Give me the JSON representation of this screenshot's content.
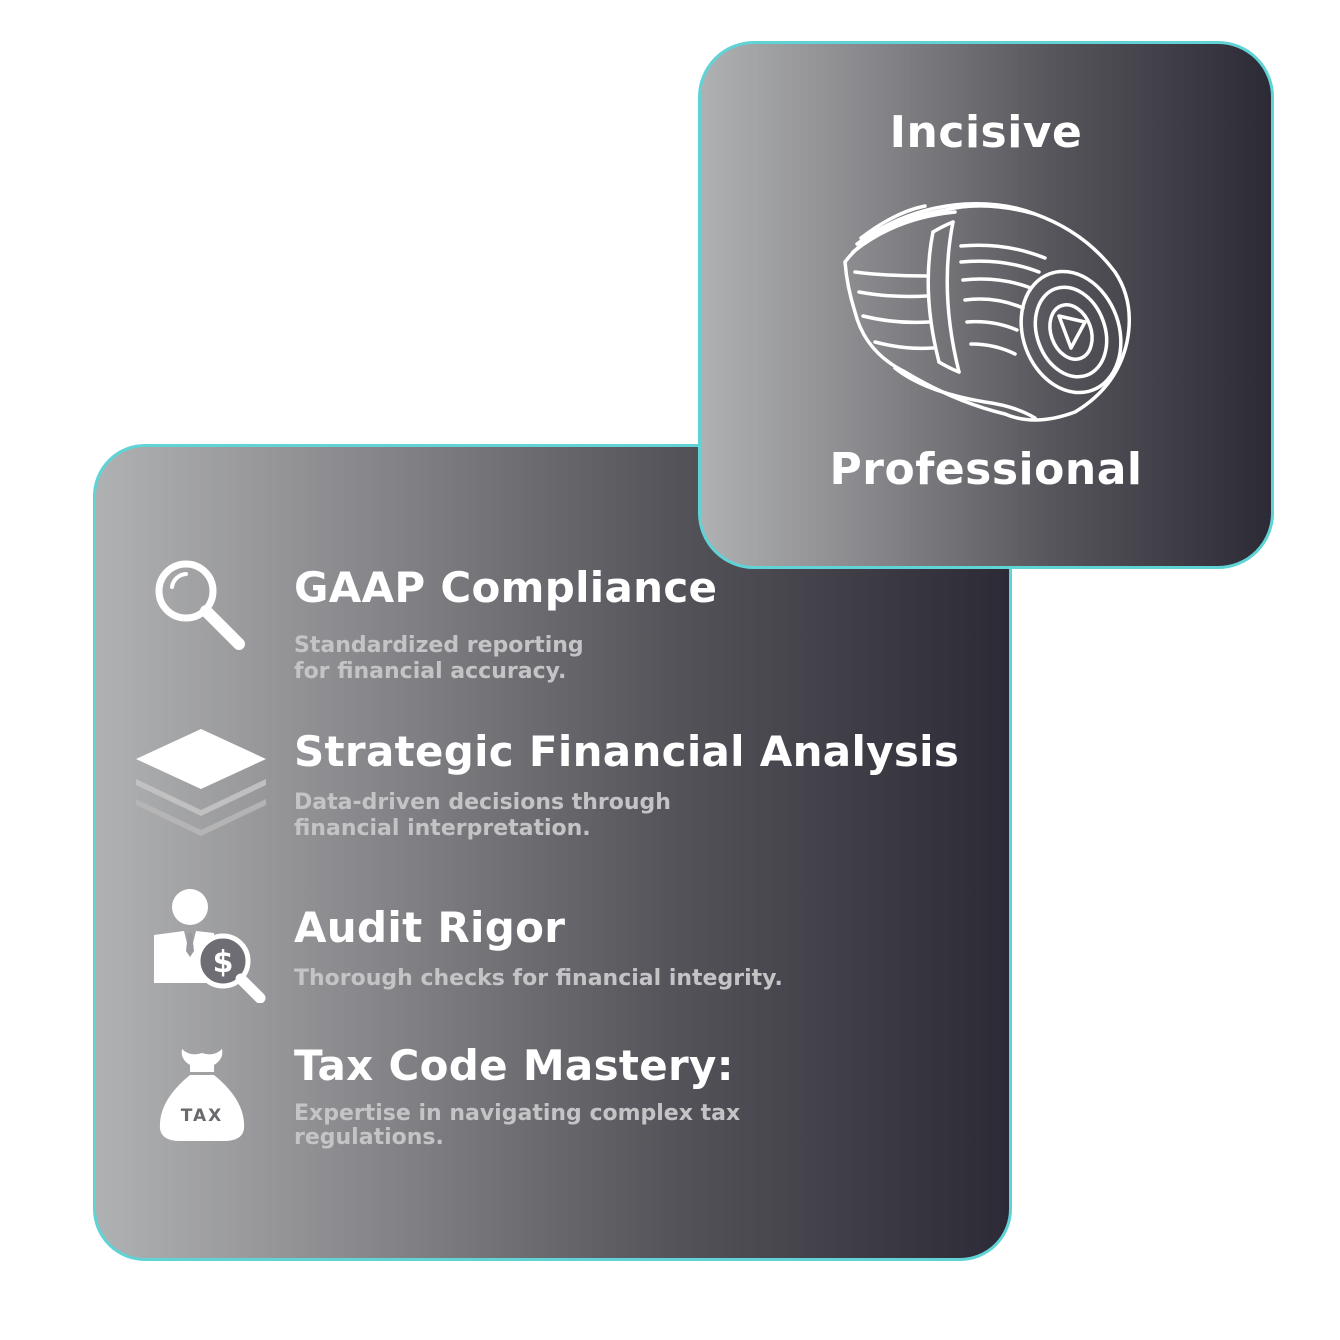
{
  "colors": {
    "accent_border": "#5fd3d6",
    "gradient_start": "#b0b1b2",
    "gradient_end": "#2c2a35",
    "text_primary": "#ffffff",
    "text_secondary": "#c4c4c6"
  },
  "top_card": {
    "title_top": "Incisive",
    "title_bottom": "Professional",
    "icon": "rolled-cash-icon"
  },
  "features": [
    {
      "icon": "magnifying-glass-icon",
      "title": "GAAP Compliance",
      "description_lines": [
        "Standardized reporting",
        "for financial accuracy."
      ]
    },
    {
      "icon": "stacked-layers-icon",
      "title": "Strategic Financial Analysis",
      "description_lines": [
        "Data-driven decisions through",
        "financial interpretation."
      ]
    },
    {
      "icon": "auditor-dollar-icon",
      "title": "Audit Rigor",
      "description_lines": [
        "Thorough checks for financial integrity."
      ]
    },
    {
      "icon": "tax-bag-icon",
      "title": "Tax Code Mastery:",
      "description_lines": [
        "Expertise in navigating complex tax",
        "regulations."
      ]
    }
  ]
}
